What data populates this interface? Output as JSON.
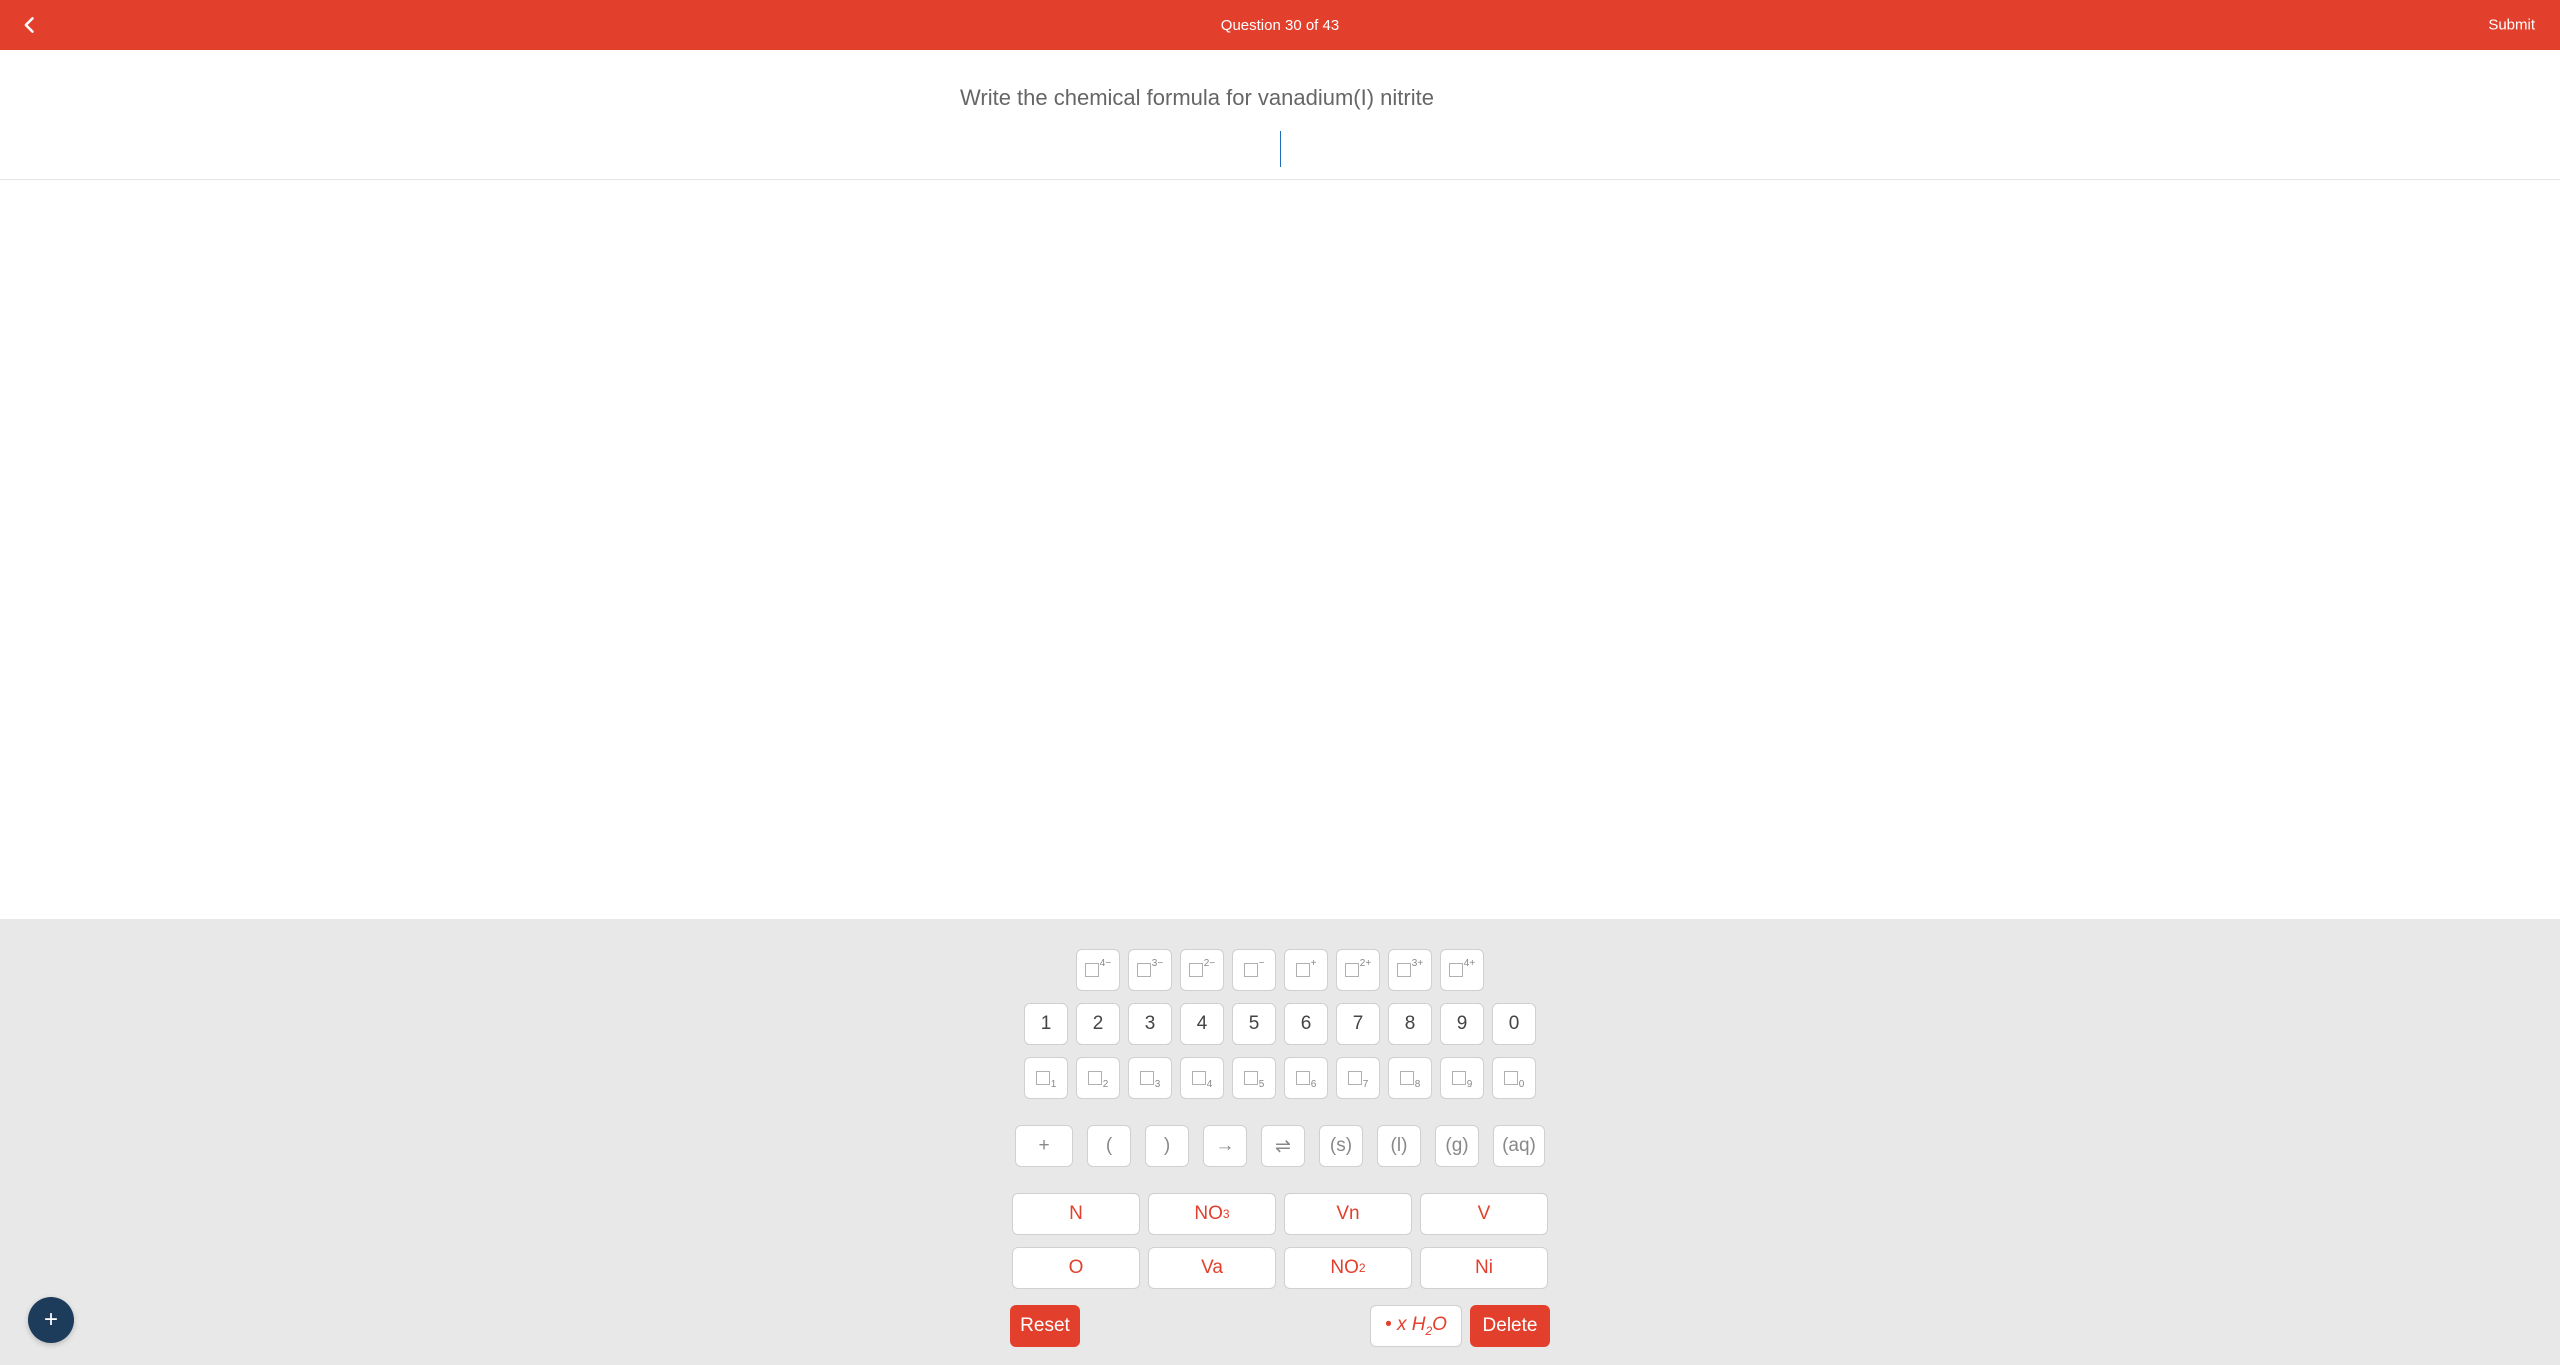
{
  "header": {
    "title": "Question 30 of 43",
    "submit": "Submit"
  },
  "question": {
    "prompt": "Write the chemical formula for vanadium(I) nitrite"
  },
  "keyboard": {
    "charges": [
      "4−",
      "3−",
      "2−",
      "−",
      "+",
      "2+",
      "3+",
      "4+"
    ],
    "digits": [
      "1",
      "2",
      "3",
      "4",
      "5",
      "6",
      "7",
      "8",
      "9",
      "0"
    ],
    "subscripts": [
      "1",
      "2",
      "3",
      "4",
      "5",
      "6",
      "7",
      "8",
      "9",
      "0"
    ],
    "symbols": {
      "plus": "+",
      "lparen": "(",
      "rparen": ")",
      "arrow": "→",
      "equil": "⇌",
      "s": "(s)",
      "l": "(l)",
      "g": "(g)",
      "aq": "(aq)"
    },
    "elements_row1": [
      "N",
      "NO3",
      "Vn",
      "V"
    ],
    "elements_row2": [
      "O",
      "Va",
      "NO2",
      "Ni"
    ],
    "reset": "Reset",
    "h2o_prefix": "• x ",
    "h2o": "H2O",
    "delete": "Delete"
  },
  "fab": "+",
  "colors": {
    "header_bg": "#e2402c",
    "keyboard_bg": "#e8e8e8",
    "fab_bg": "#1d3b5b",
    "text_muted": "#666666"
  }
}
